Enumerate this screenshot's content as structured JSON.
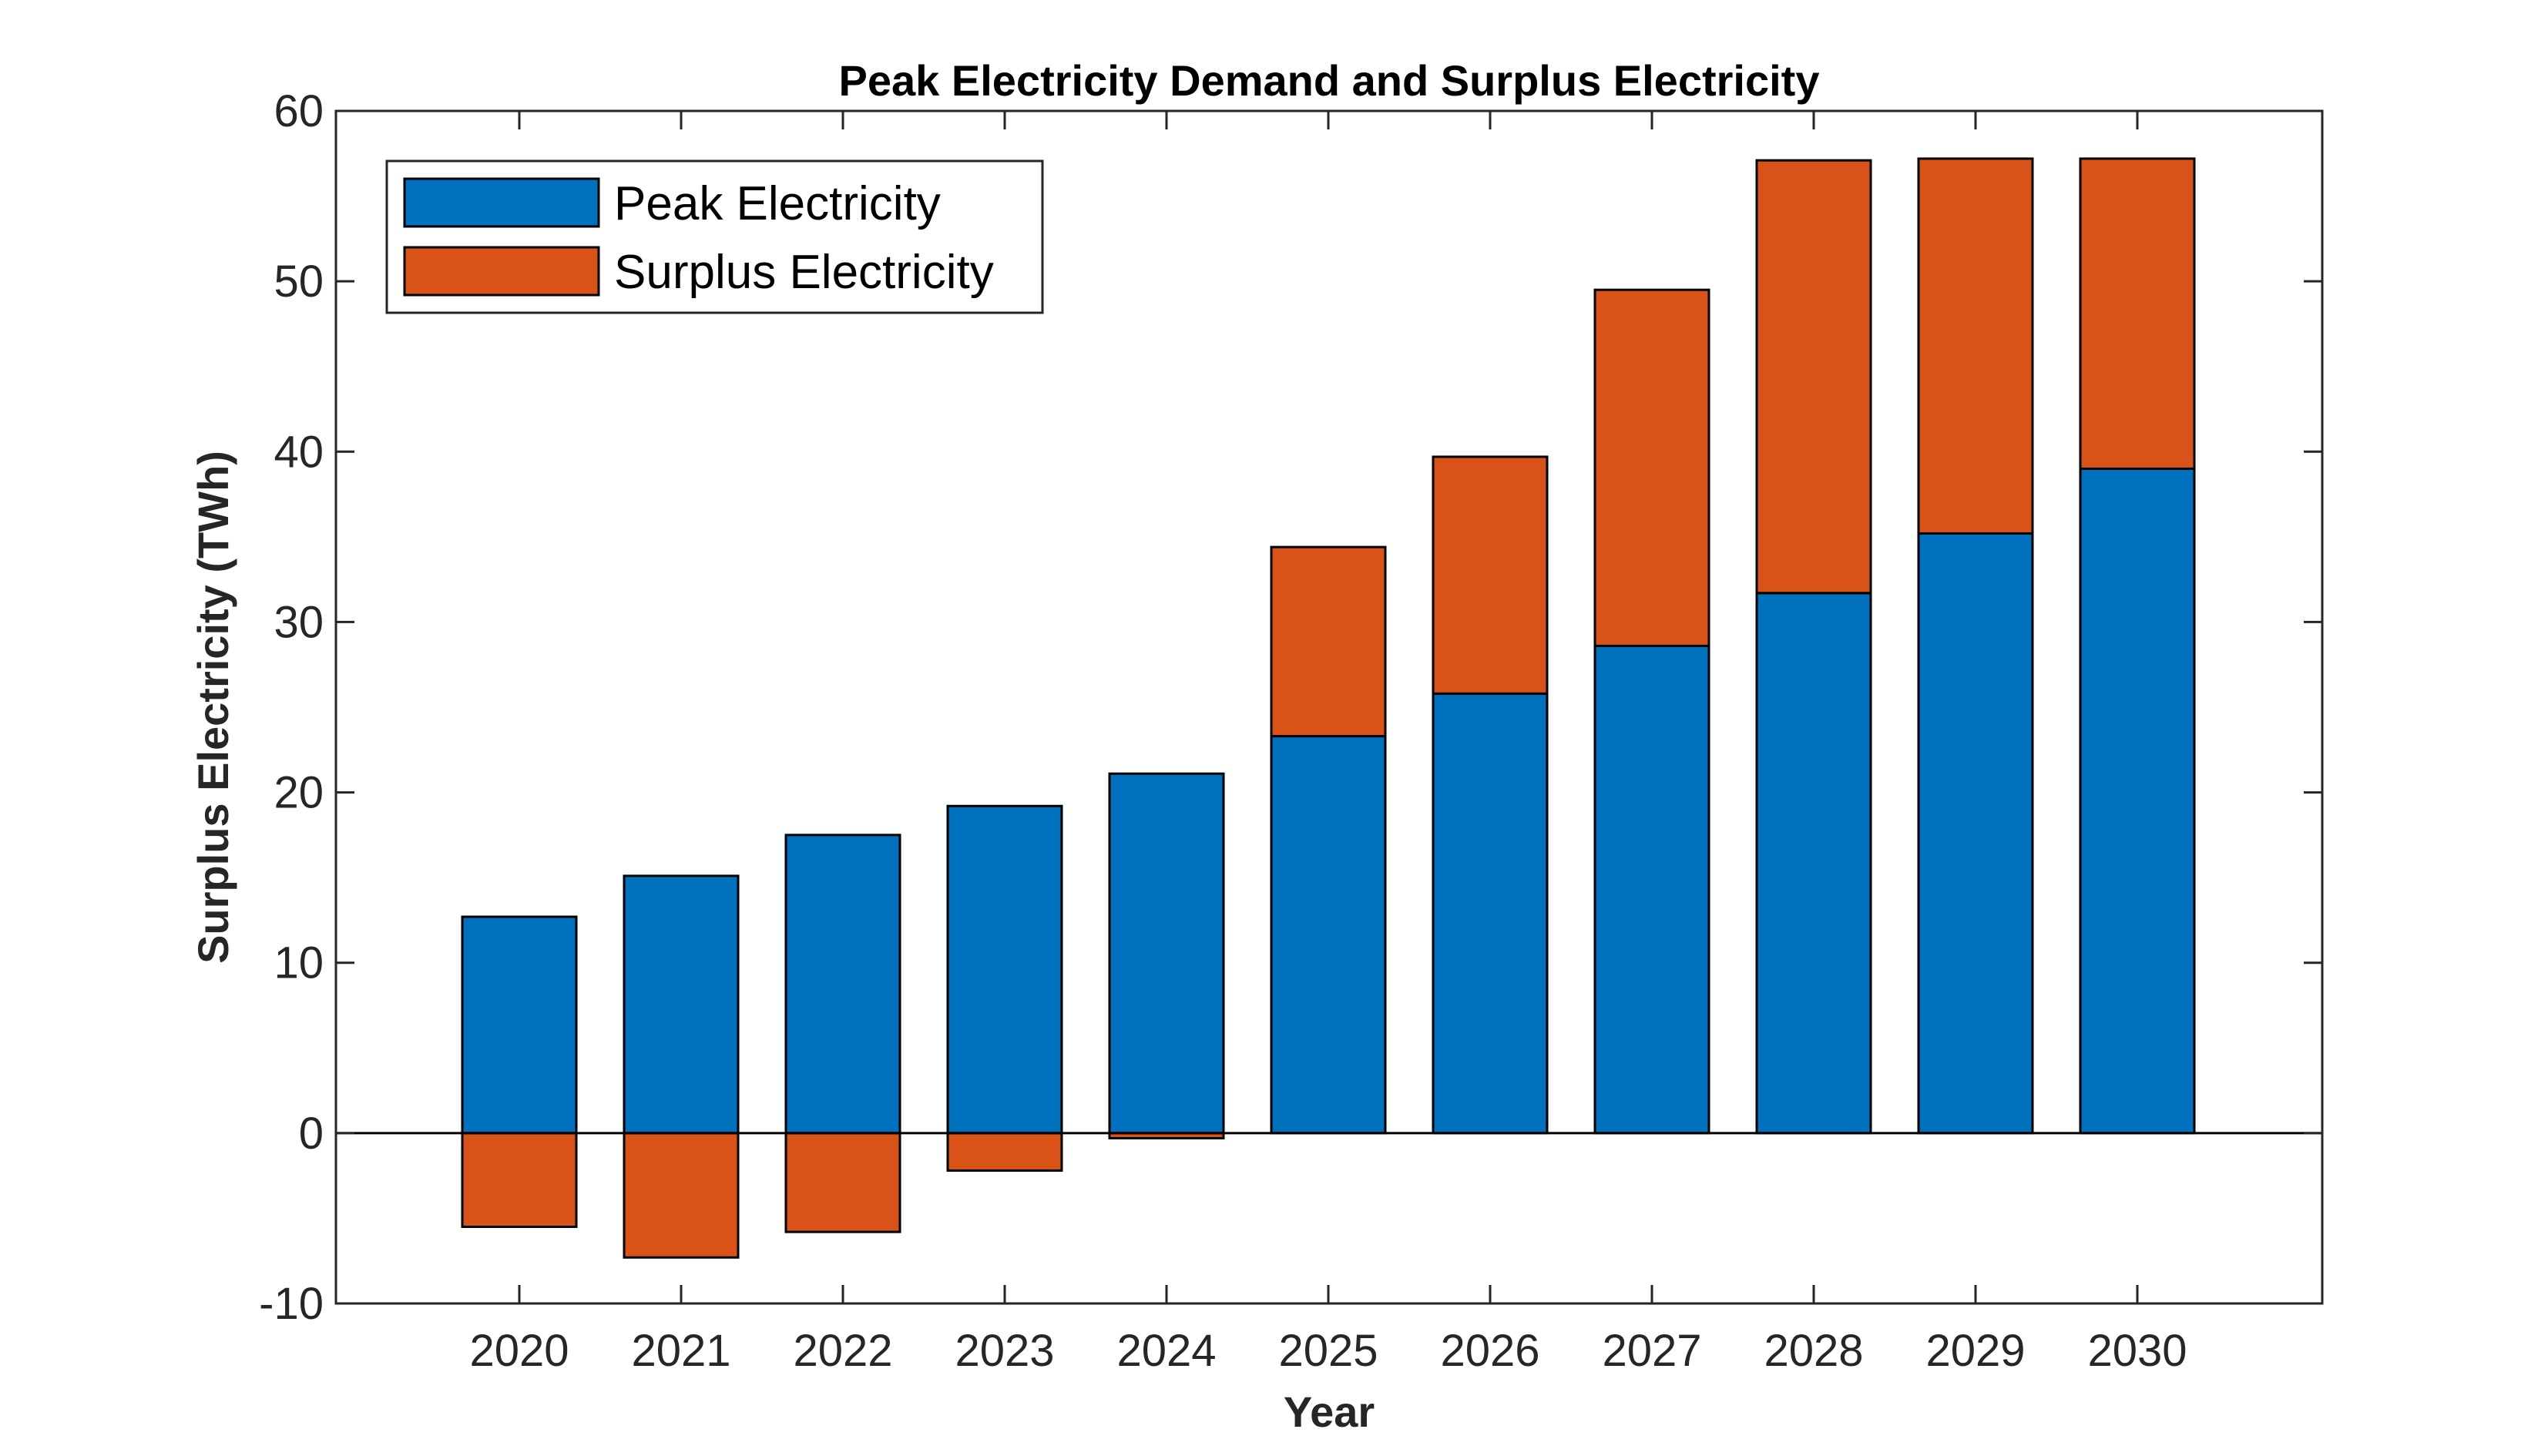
{
  "chart_data": {
    "type": "bar",
    "title": "Peak Electricity Demand and Surplus Electricity",
    "xlabel": "Year",
    "ylabel": "Surplus Electricity (TWh)",
    "categories": [
      "2020",
      "2021",
      "2022",
      "2023",
      "2024",
      "2025",
      "2026",
      "2027",
      "2028",
      "2029",
      "2030"
    ],
    "stacked": true,
    "series": [
      {
        "name": "Peak Electricity",
        "color": "#0072BD",
        "values": [
          12.7,
          15.1,
          17.5,
          19.2,
          21.1,
          23.3,
          25.8,
          28.6,
          31.7,
          35.2,
          39.0
        ]
      },
      {
        "name": "Surplus Electricity",
        "color": "#D95319",
        "values": [
          -5.5,
          -7.3,
          -5.8,
          -2.2,
          -0.3,
          11.1,
          13.9,
          20.9,
          25.4,
          22.0,
          18.2
        ]
      }
    ],
    "ylim": [
      -10,
      60
    ],
    "yticks": [
      -10,
      0,
      10,
      20,
      30,
      40,
      50,
      60
    ],
    "grid": false,
    "legend_position": "top-left"
  }
}
